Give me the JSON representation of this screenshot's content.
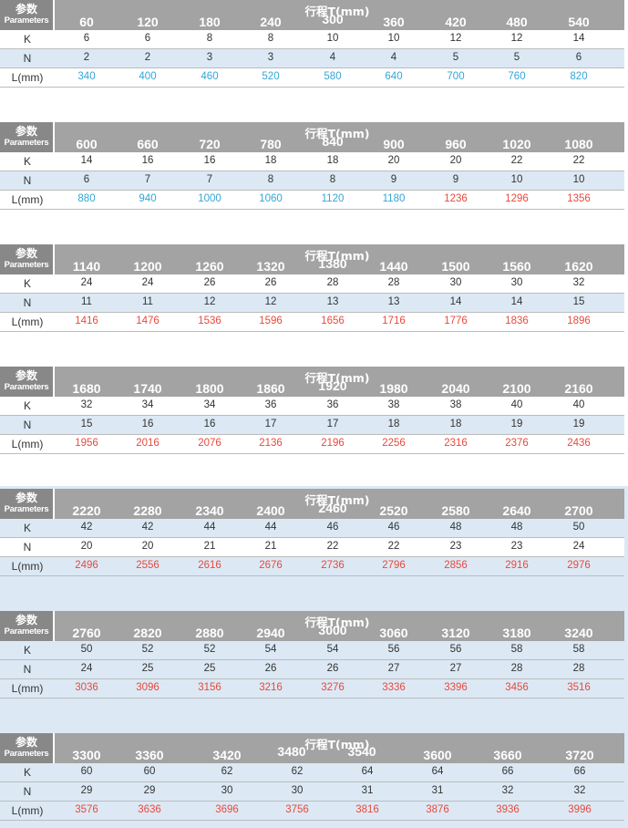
{
  "header_title": "行程T(mm)",
  "param_zh": "参数",
  "param_en": "Parameters",
  "row_labels": [
    "K",
    "N",
    "L(mm)"
  ],
  "colors": {
    "blue": "#33a6d6",
    "red": "#e8493c",
    "header": "#a3a3a3",
    "param_cell": "#888888",
    "stripe": "#dce9f5"
  },
  "tables": [
    {
      "strokes": [
        "60",
        "120",
        "180",
        "240",
        "300",
        "360",
        "420",
        "480",
        "540"
      ],
      "K": [
        "6",
        "6",
        "8",
        "8",
        "10",
        "10",
        "12",
        "12",
        "14"
      ],
      "N": [
        "2",
        "2",
        "3",
        "3",
        "4",
        "4",
        "5",
        "5",
        "6"
      ],
      "L": [
        "340",
        "400",
        "460",
        "520",
        "580",
        "640",
        "700",
        "760",
        "820"
      ],
      "L_colors": [
        "blue",
        "blue",
        "blue",
        "blue",
        "blue",
        "blue",
        "blue",
        "blue",
        "blue"
      ]
    },
    {
      "strokes": [
        "600",
        "660",
        "720",
        "780",
        "840",
        "900",
        "960",
        "1020",
        "1080"
      ],
      "K": [
        "14",
        "16",
        "16",
        "18",
        "18",
        "20",
        "20",
        "22",
        "22"
      ],
      "N": [
        "6",
        "7",
        "7",
        "8",
        "8",
        "9",
        "9",
        "10",
        "10"
      ],
      "L": [
        "880",
        "940",
        "1000",
        "1060",
        "1120",
        "1180",
        "1236",
        "1296",
        "1356"
      ],
      "L_colors": [
        "blue",
        "blue",
        "blue",
        "blue",
        "blue",
        "blue",
        "red",
        "red",
        "red"
      ]
    },
    {
      "strokes": [
        "1140",
        "1200",
        "1260",
        "1320",
        "1380",
        "1440",
        "1500",
        "1560",
        "1620"
      ],
      "K": [
        "24",
        "24",
        "26",
        "26",
        "28",
        "28",
        "30",
        "30",
        "32"
      ],
      "N": [
        "11",
        "11",
        "12",
        "12",
        "13",
        "13",
        "14",
        "14",
        "15"
      ],
      "L": [
        "1416",
        "1476",
        "1536",
        "1596",
        "1656",
        "1716",
        "1776",
        "1836",
        "1896"
      ],
      "L_colors": [
        "red",
        "red",
        "red",
        "red",
        "red",
        "red",
        "red",
        "red",
        "red"
      ]
    },
    {
      "strokes": [
        "1680",
        "1740",
        "1800",
        "1860",
        "1920",
        "1980",
        "2040",
        "2100",
        "2160"
      ],
      "K": [
        "32",
        "34",
        "34",
        "36",
        "36",
        "38",
        "38",
        "40",
        "40"
      ],
      "N": [
        "15",
        "16",
        "16",
        "17",
        "17",
        "18",
        "18",
        "19",
        "19"
      ],
      "L": [
        "1956",
        "2016",
        "2076",
        "2136",
        "2196",
        "2256",
        "2316",
        "2376",
        "2436"
      ],
      "L_colors": [
        "red",
        "red",
        "red",
        "red",
        "red",
        "red",
        "red",
        "red",
        "red"
      ]
    },
    {
      "strokes": [
        "2220",
        "2280",
        "2340",
        "2400",
        "2460",
        "2520",
        "2580",
        "2640",
        "2700"
      ],
      "K": [
        "42",
        "42",
        "44",
        "44",
        "46",
        "46",
        "48",
        "48",
        "50"
      ],
      "N": [
        "20",
        "20",
        "21",
        "21",
        "22",
        "22",
        "23",
        "23",
        "24"
      ],
      "L": [
        "2496",
        "2556",
        "2616",
        "2676",
        "2736",
        "2796",
        "2856",
        "2916",
        "2976"
      ],
      "L_colors": [
        "red",
        "red",
        "red",
        "red",
        "red",
        "red",
        "red",
        "red",
        "red"
      ]
    },
    {
      "strokes": [
        "2760",
        "2820",
        "2880",
        "2940",
        "3000",
        "3060",
        "3120",
        "3180",
        "3240"
      ],
      "K": [
        "50",
        "52",
        "52",
        "54",
        "54",
        "56",
        "56",
        "58",
        "58"
      ],
      "N": [
        "24",
        "25",
        "25",
        "26",
        "26",
        "27",
        "27",
        "28",
        "28"
      ],
      "L": [
        "3036",
        "3096",
        "3156",
        "3216",
        "3276",
        "3336",
        "3396",
        "3456",
        "3516"
      ],
      "L_colors": [
        "red",
        "red",
        "red",
        "red",
        "red",
        "red",
        "red",
        "red",
        "red"
      ]
    },
    {
      "strokes": [
        "3300",
        "3360",
        "3420",
        "3480",
        "3540",
        "3600",
        "3660",
        "3720"
      ],
      "K": [
        "60",
        "60",
        "62",
        "62",
        "64",
        "64",
        "66",
        "66"
      ],
      "N": [
        "29",
        "29",
        "30",
        "30",
        "31",
        "31",
        "32",
        "32"
      ],
      "L": [
        "3576",
        "3636",
        "3696",
        "3756",
        "3816",
        "3876",
        "3936",
        "3996"
      ],
      "L_colors": [
        "red",
        "red",
        "red",
        "red",
        "red",
        "red",
        "red",
        "red"
      ]
    }
  ]
}
